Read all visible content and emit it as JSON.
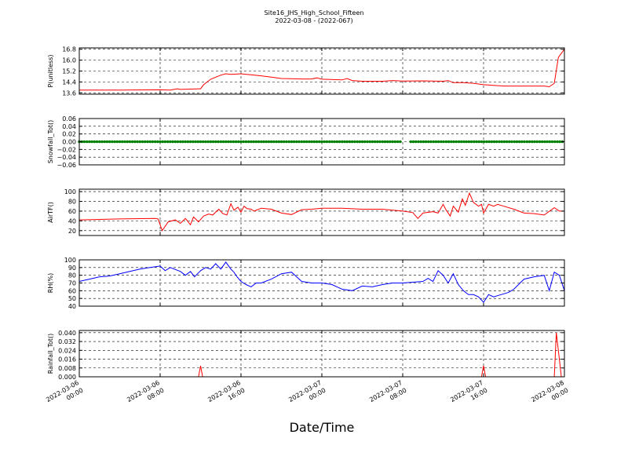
{
  "title": "Site16_JHS_High_School_Fifteen",
  "subtitle": "2022-03-08 - (2022-067)",
  "xlabel": "Date/Time",
  "x_ticks": [
    {
      "t": 0,
      "line1": "2022-03-06",
      "line2": "00:00"
    },
    {
      "t": 8,
      "line1": "2022-03-06",
      "line2": "08:00"
    },
    {
      "t": 16,
      "line1": "2022-03-06",
      "line2": "16:00"
    },
    {
      "t": 24,
      "line1": "2022-03-07",
      "line2": "00:00"
    },
    {
      "t": 32,
      "line1": "2022-03-07",
      "line2": "08:00"
    },
    {
      "t": 40,
      "line1": "2022-03-07",
      "line2": "16:00"
    },
    {
      "t": 48,
      "line1": "2022-03-08",
      "line2": "00:00"
    }
  ],
  "chart_data": [
    {
      "type": "line",
      "ylabel": "P(unitless)",
      "color": "#ff0000",
      "ylim": [
        13.5,
        16.9
      ],
      "yticks": [
        13.6,
        14.4,
        15.2,
        16.0,
        16.8
      ],
      "ytick_labels": [
        "13.6",
        "14.4",
        "15.2",
        "16.0",
        "16.8"
      ],
      "x_hours": [
        0,
        4,
        8,
        9,
        9.7,
        10,
        12,
        12.3,
        13,
        14,
        14.5,
        15,
        16,
        18,
        19,
        20,
        22,
        23,
        23.5,
        24,
        26,
        26.5,
        27,
        28,
        30,
        31,
        32,
        34,
        36,
        36.5,
        37,
        38,
        39,
        40,
        42,
        43,
        46,
        46.5,
        47,
        47.4,
        48
      ],
      "values": [
        13.8,
        13.8,
        13.82,
        13.8,
        13.9,
        13.85,
        13.9,
        14.2,
        14.6,
        14.9,
        15.0,
        14.95,
        15.0,
        14.85,
        14.75,
        14.65,
        14.62,
        14.62,
        14.7,
        14.6,
        14.55,
        14.65,
        14.5,
        14.45,
        14.45,
        14.5,
        14.47,
        14.48,
        14.45,
        14.5,
        14.35,
        14.35,
        14.3,
        14.2,
        14.1,
        14.1,
        14.1,
        14.05,
        14.3,
        16.2,
        16.8
      ]
    },
    {
      "type": "scatter",
      "ylabel": "Snowfall_Tot()",
      "color": "#008000",
      "ylim": [
        -0.06,
        0.06
      ],
      "yticks": [
        -0.06,
        -0.04,
        -0.02,
        0.0,
        0.02,
        0.04,
        0.06
      ],
      "ytick_labels": [
        "−0.06",
        "−0.04",
        "−0.02",
        "0.00",
        "0.02",
        "0.04",
        "0.06"
      ],
      "x_ranges_hours": [
        [
          0,
          31.9
        ],
        [
          32.8,
          48
        ]
      ],
      "step_hours": 0.25,
      "value": 0.0
    },
    {
      "type": "line",
      "ylabel": "AirTF()",
      "color": "#ff0000",
      "ylim": [
        10,
        105
      ],
      "yticks": [
        20,
        40,
        60,
        80,
        100
      ],
      "ytick_labels": [
        "20",
        "40",
        "60",
        "80",
        "100"
      ],
      "x_hours": [
        0,
        4,
        7.5,
        7.8,
        8.2,
        8.8,
        9.5,
        10,
        10.5,
        11,
        11.3,
        11.8,
        12.3,
        12.8,
        13.2,
        13.8,
        14.2,
        14.6,
        15,
        15.3,
        15.7,
        16,
        16.3,
        16.6,
        17,
        17.3,
        18,
        19,
        20,
        21,
        22,
        23,
        24,
        26,
        28,
        30,
        31,
        32,
        33,
        33.5,
        34,
        35,
        35.5,
        36,
        36.3,
        36.7,
        37,
        37.5,
        37.9,
        38.2,
        38.6,
        39,
        39.5,
        39.8,
        40,
        40.5,
        41,
        41.4,
        42,
        43,
        44,
        45,
        46,
        47,
        47.5,
        48
      ],
      "values": [
        42,
        44,
        45,
        44,
        20,
        38,
        42,
        35,
        45,
        32,
        48,
        38,
        50,
        54,
        52,
        64,
        55,
        52,
        75,
        62,
        68,
        58,
        70,
        65,
        64,
        60,
        66,
        64,
        56,
        53,
        63,
        64,
        66,
        66,
        64,
        64,
        62,
        60,
        57,
        45,
        56,
        59,
        56,
        74,
        62,
        50,
        70,
        58,
        85,
        72,
        97,
        78,
        70,
        74,
        56,
        74,
        70,
        74,
        70,
        64,
        56,
        55,
        52,
        67,
        60,
        60
      ]
    },
    {
      "type": "line",
      "ylabel": "RH(%)",
      "color": "#0000ff",
      "ylim": [
        40,
        100
      ],
      "yticks": [
        40,
        50,
        60,
        70,
        80,
        90,
        100
      ],
      "ytick_labels": [
        "40",
        "50",
        "60",
        "70",
        "80",
        "90",
        "100"
      ],
      "x_hours": [
        0,
        1,
        2,
        3,
        4,
        5,
        6,
        7,
        8,
        8.5,
        9,
        10,
        10.5,
        11,
        11.4,
        12,
        12.5,
        13,
        13.5,
        14,
        14.5,
        15,
        15.3,
        15.6,
        16,
        16.5,
        17,
        17.5,
        18,
        19,
        20,
        21,
        22,
        23,
        24,
        25,
        26,
        27,
        28,
        29,
        30,
        31,
        32,
        33,
        34,
        34.5,
        35,
        35.5,
        36,
        36.5,
        37,
        37.5,
        38,
        38.5,
        39,
        39.5,
        40,
        40.5,
        41,
        41.5,
        42,
        42.5,
        43,
        44,
        45,
        46,
        46.5,
        47,
        47.5,
        48
      ],
      "values": [
        72,
        75,
        78,
        79,
        82,
        85,
        88,
        90,
        92,
        86,
        90,
        85,
        80,
        85,
        78,
        86,
        90,
        88,
        95,
        88,
        97,
        88,
        84,
        78,
        72,
        68,
        65,
        70,
        70,
        75,
        82,
        84,
        72,
        70,
        70,
        68,
        62,
        60,
        66,
        65,
        68,
        70,
        70,
        71,
        72,
        76,
        72,
        86,
        80,
        70,
        82,
        68,
        60,
        55,
        55,
        52,
        45,
        55,
        52,
        54,
        56,
        58,
        62,
        75,
        78,
        80,
        60,
        84,
        80,
        60
      ]
    },
    {
      "type": "line",
      "ylabel": "Rainfall_Tot()",
      "color": "#ff0000",
      "ylim": [
        0,
        0.042
      ],
      "yticks": [
        0.0,
        0.008,
        0.016,
        0.024,
        0.032,
        0.04
      ],
      "ytick_labels": [
        "0.000",
        "0.008",
        "0.016",
        "0.024",
        "0.032",
        "0.040"
      ],
      "x_hours": [
        0,
        11.8,
        12.0,
        12.2,
        39.8,
        40.0,
        40.2,
        47.0,
        47.2,
        47.7,
        48
      ],
      "values": [
        0,
        0,
        0.01,
        0,
        0,
        0.01,
        0,
        0,
        0.04,
        0,
        0
      ]
    }
  ]
}
